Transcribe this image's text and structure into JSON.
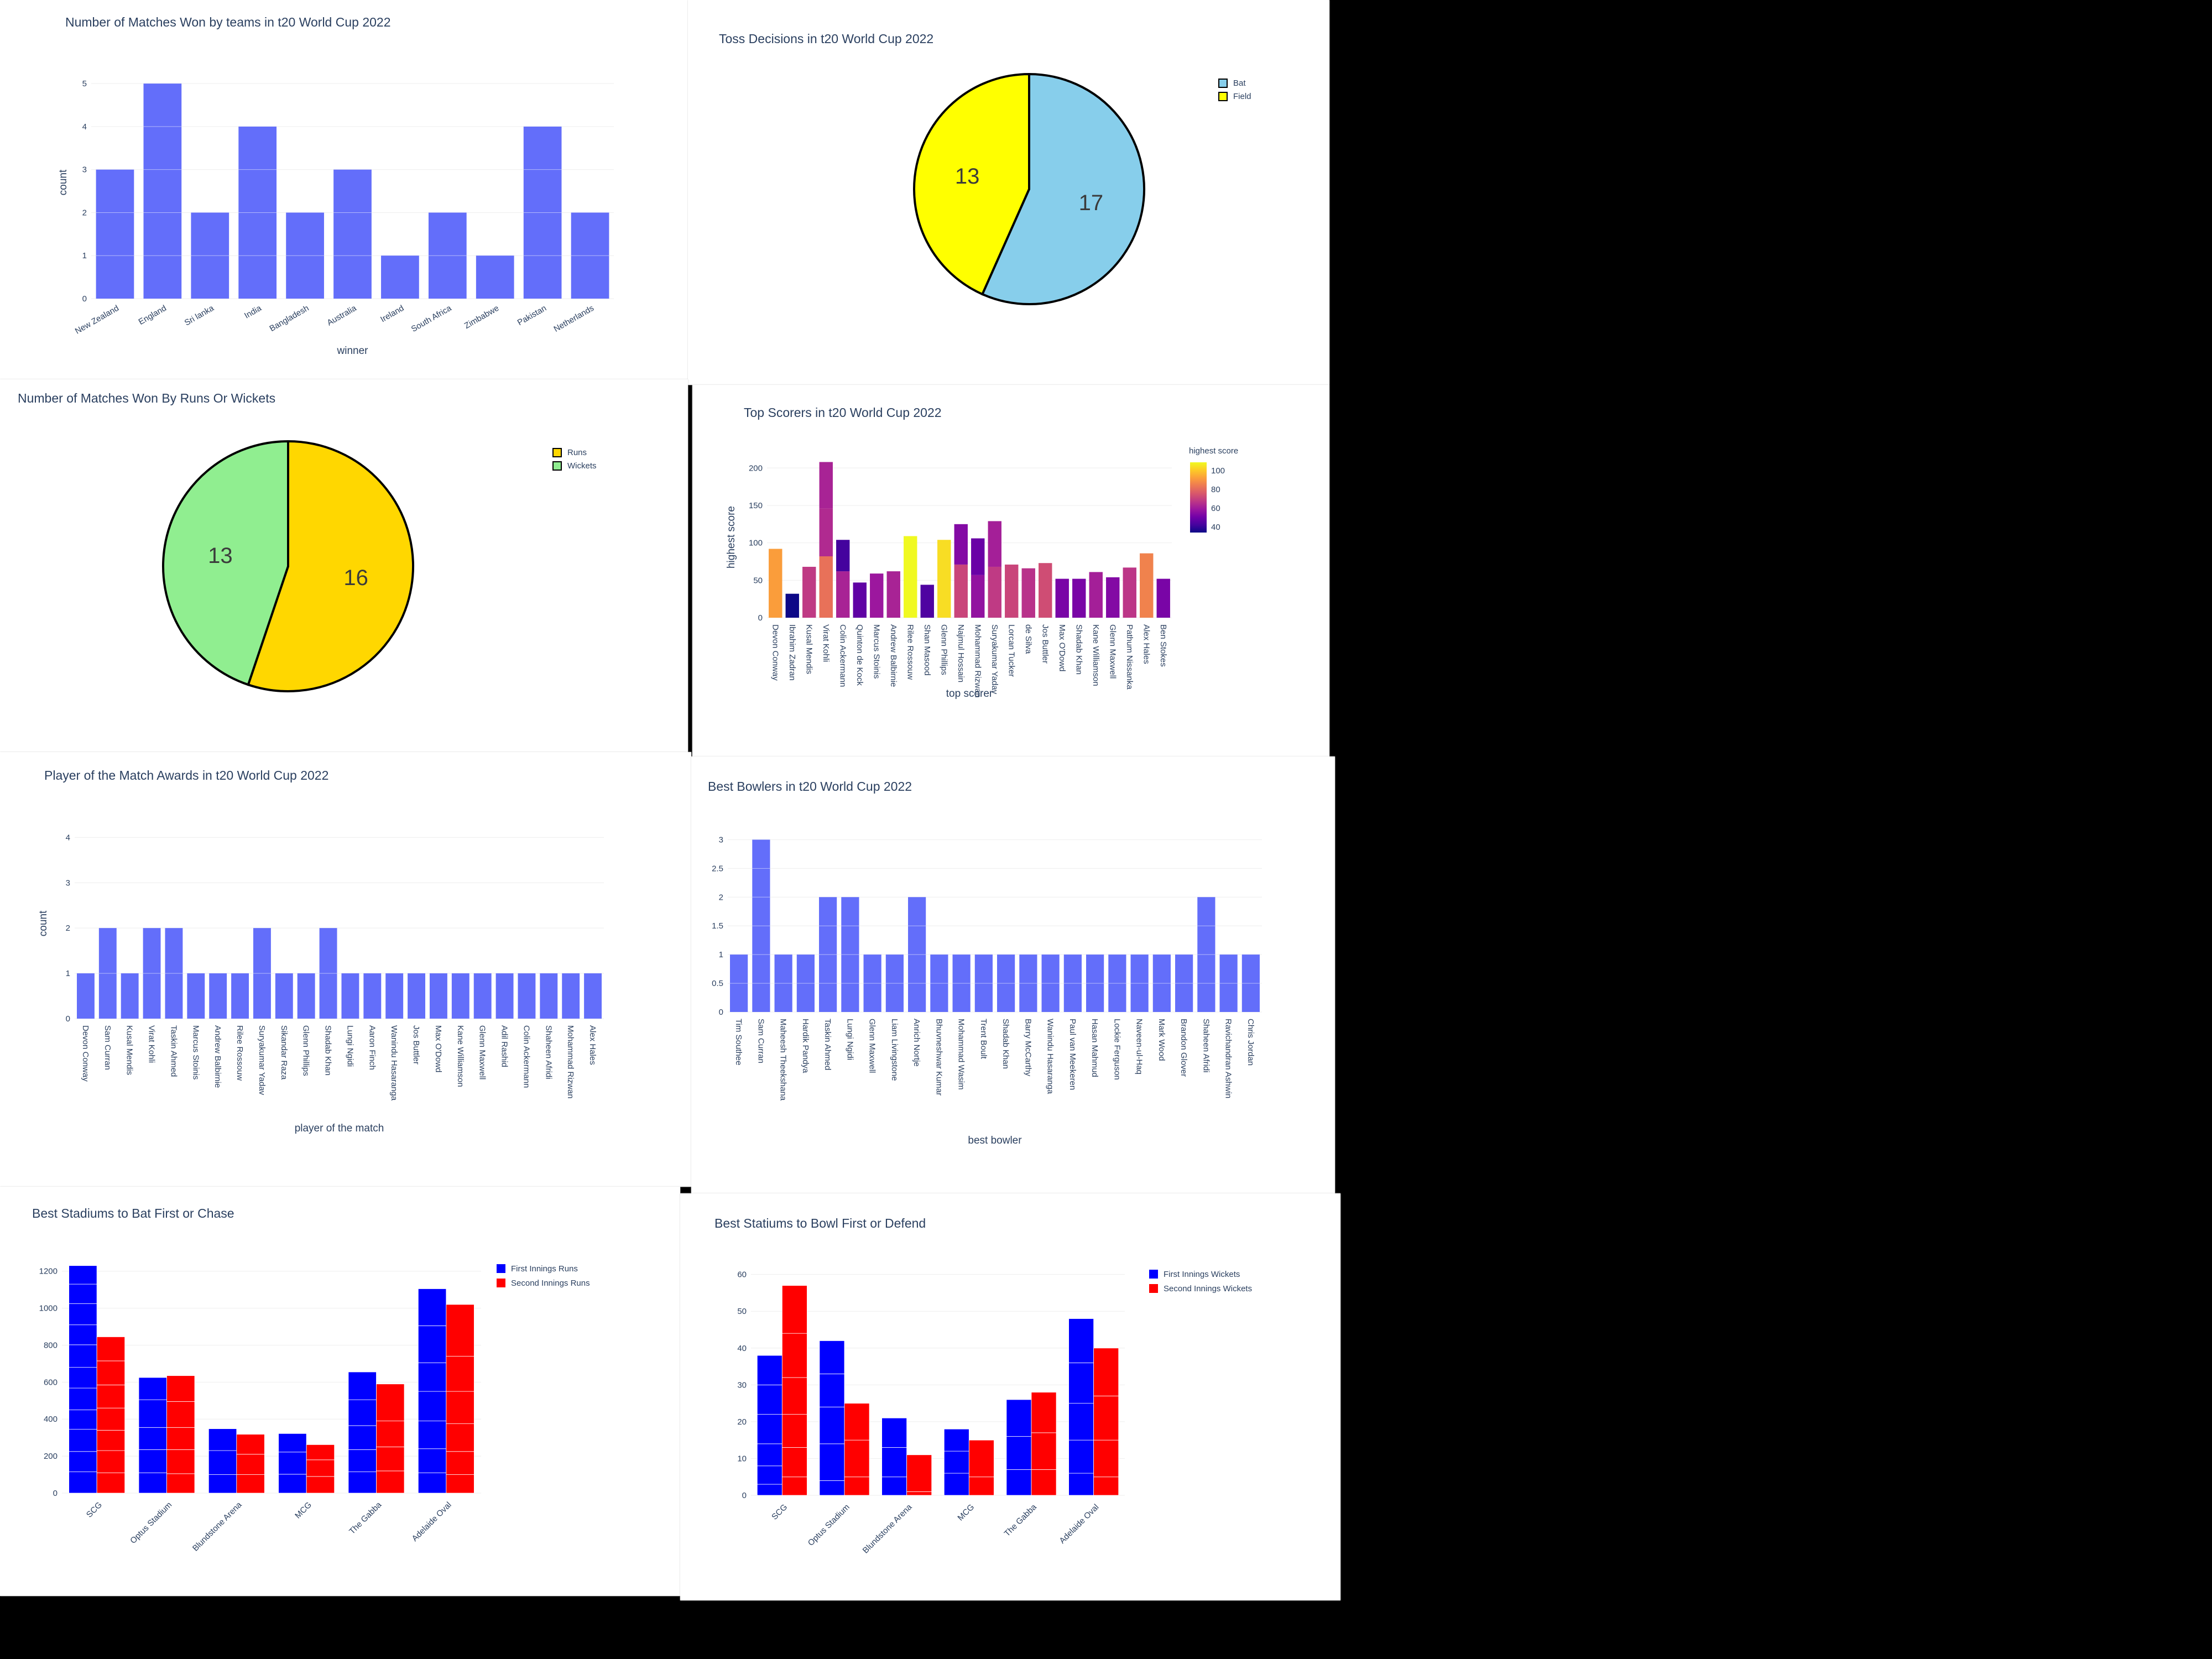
{
  "colors": {
    "plotly_blue": "#636efa",
    "bat": "#87ceeb",
    "field": "#ffff00",
    "runs": "#ffd700",
    "wickets": "#90ee90",
    "first": "#0000ff",
    "second": "#ff0000"
  },
  "chart_data": [
    {
      "id": "matches_won",
      "type": "bar",
      "title": "Number of Matches Won by teams in t20 World Cup 2022",
      "xlabel": "winner",
      "ylabel": "count",
      "ylim": [
        0,
        5.4
      ],
      "yticks": [
        0,
        1,
        2,
        3,
        4,
        5
      ],
      "categories": [
        "New Zealand",
        "England",
        "Sri lanka",
        "India",
        "Bangladesh",
        "Australia",
        "Ireland",
        "South Africa",
        "Zimbabwe",
        "Pakistan",
        "Netherlands"
      ],
      "values": [
        3,
        5,
        2,
        4,
        2,
        3,
        1,
        2,
        1,
        4,
        2
      ],
      "color": "#636efa"
    },
    {
      "id": "toss_decisions",
      "type": "pie",
      "title": "Toss Decisions in t20 World Cup 2022",
      "labels": [
        "Bat",
        "Field"
      ],
      "values": [
        17,
        13
      ],
      "colors": [
        "#87ceeb",
        "#ffff00"
      ]
    },
    {
      "id": "won_by",
      "type": "pie",
      "title": "Number of Matches Won By Runs Or Wickets",
      "labels": [
        "Runs",
        "Wickets"
      ],
      "values": [
        16,
        13
      ],
      "colors": [
        "#ffd700",
        "#90ee90"
      ]
    },
    {
      "id": "top_scorers",
      "type": "bar",
      "title": "Top Scorers in t20 World Cup 2022",
      "xlabel": "top scorer",
      "ylabel": "highest score",
      "ylim": [
        0,
        215
      ],
      "yticks": [
        0,
        50,
        100,
        150,
        200
      ],
      "colorbar_title": "highest score",
      "colorbar_ticks": [
        40,
        60,
        80,
        100
      ],
      "colorbar_range": [
        34,
        109
      ],
      "categories": [
        "Devon Conway",
        "Ibrahim Zadran",
        "Kusal Mendis",
        "Virat Kohli",
        "Colin Ackermann",
        "Quinton de Kock",
        "Marcus Stoinis",
        "Andrew Balbirnie",
        "Rilee Rossouw",
        "Shan Masood",
        "Glenn Phillips",
        "Najmul Hossain",
        "Mohammad Rizwan",
        "Suryakumar Yadav",
        "Lorcan Tucker",
        "de Silva",
        "Jos Buttler",
        "Max O'Dowd",
        "Shadab Khan",
        "Kane Williamson",
        "Glenn Maxwell",
        "Pathum Nissanka",
        "Alex Hales",
        "Ben Stokes"
      ],
      "segments": [
        [
          92
        ],
        [
          32
        ],
        [
          68
        ],
        [
          82,
          64,
          62
        ],
        [
          62,
          42
        ],
        [
          47
        ],
        [
          59
        ],
        [
          62
        ],
        [
          109
        ],
        [
          44
        ],
        [
          104
        ],
        [
          71,
          54
        ],
        [
          57,
          49
        ],
        [
          68,
          61
        ],
        [
          71
        ],
        [
          66
        ],
        [
          73
        ],
        [
          52
        ],
        [
          52
        ],
        [
          61
        ],
        [
          54
        ],
        [
          67
        ],
        [
          86
        ],
        [
          52
        ]
      ]
    },
    {
      "id": "player_of_match",
      "type": "bar",
      "title": "Player of the Match Awards in t20 World Cup 2022",
      "xlabel": "player of the match",
      "ylabel": "count",
      "ylim": [
        0,
        4.2
      ],
      "yticks": [
        0,
        1,
        2,
        3,
        4
      ],
      "categories": [
        "Devon Conway",
        "Sam Curran",
        "Kusal Mendis",
        "Virat Kohli",
        "Taskin Ahmed",
        "Marcus Stoinis",
        "Andrew Balbirnie",
        "Rilee Rossouw",
        "Suryakumar Yadav",
        "Sikandar Raza",
        "Glenn Phillips",
        "Shadab Khan",
        "Lungi Ngidi",
        "Aaron Finch",
        "Wanindu Hasaranga",
        "Jos Buttler",
        "Max O'Dowd",
        "Kane Williamson",
        "Glenn Maxwell",
        "Adil Rashid",
        "Colin Ackermann",
        "Shaheen Afridi",
        "Mohammad Rizwan",
        "Alex Hales"
      ],
      "values": [
        1,
        2,
        1,
        2,
        2,
        1,
        1,
        1,
        2,
        1,
        1,
        2,
        1,
        1,
        1,
        1,
        1,
        1,
        1,
        1,
        1,
        1,
        1,
        1
      ],
      "color": "#636efa"
    },
    {
      "id": "best_bowlers",
      "type": "bar",
      "title": "Best Bowlers in t20 World Cup 2022",
      "xlabel": "best bowler",
      "ylabel": "count",
      "ylim": [
        0,
        3.1
      ],
      "yticks": [
        0,
        0.5,
        1,
        1.5,
        2,
        2.5,
        3
      ],
      "ytick_labels": [
        "0",
        "0.5",
        "1",
        "1.5",
        "2",
        "2.5",
        "3"
      ],
      "categories": [
        "Tim Southee",
        "Sam Curran",
        "Maheesh Theekshana",
        "Hardik Pandya",
        "Taskin Ahmed",
        "Lungi Ngidi",
        "Glenn Maxwell",
        "Liam Livingstone",
        "Anrich Nortje",
        "Bhuvneshwar Kumar",
        "Mohammad Wasim",
        "Trent Boult",
        "Shadab Khan",
        "Barry McCarthy",
        "Wanindu Hasaranga",
        "Paul van Meekeren",
        "Hasan Mahmud",
        "Lockie Ferguson",
        "Naveen-ul-Haq",
        "Mark Wood",
        "Brandon Glover",
        "Shaheen Afridi",
        "Ravichandran Ashwin",
        "Chris Jordan"
      ],
      "values": [
        1,
        3,
        1,
        1,
        2,
        2,
        1,
        1,
        2,
        1,
        1,
        1,
        1,
        1,
        1,
        1,
        1,
        1,
        1,
        1,
        1,
        2,
        1,
        1
      ],
      "color": "#636efa"
    },
    {
      "id": "bat_first",
      "type": "bar",
      "title": "Best Stadiums to Bat First or Chase",
      "ylim": [
        0,
        1250
      ],
      "yticks": [
        0,
        200,
        400,
        600,
        800,
        1000,
        1200
      ],
      "categories": [
        "SCG",
        "Optus Stadium",
        "Blundstone Arena",
        "MCG",
        "The Gabba",
        "Adelaide Oval"
      ],
      "series": [
        {
          "name": "First Innings Runs",
          "color": "#0000ff",
          "values": [
            1230,
            625,
            348,
            322,
            655,
            1105
          ],
          "segments": [
            [
              115,
              110,
              120,
              105,
              118,
              112,
              122,
              108,
              115,
              105,
              100
            ],
            [
              110,
              125,
              120,
              150,
              120
            ],
            [
              100,
              130,
              118
            ],
            [
              102,
              120,
              100
            ],
            [
              115,
              120,
              130,
              140,
              150
            ],
            [
              110,
              130,
              150,
              160,
              155,
              200,
              200
            ]
          ]
        },
        {
          "name": "Second Innings Runs",
          "color": "#ff0000",
          "values": [
            845,
            635,
            318,
            262,
            590,
            1020
          ],
          "segments": [
            [
              110,
              120,
              110,
              120,
              125,
              130,
              130
            ],
            [
              105,
              130,
              120,
              140,
              140
            ],
            [
              100,
              110,
              108
            ],
            [
              90,
              90,
              82
            ],
            [
              120,
              130,
              140,
              200
            ],
            [
              100,
              125,
              150,
              175,
              190,
              280
            ]
          ]
        }
      ]
    },
    {
      "id": "bowl_first",
      "type": "bar",
      "title": "Best Statiums to Bowl First or Defend",
      "ylim": [
        0,
        61
      ],
      "yticks": [
        0,
        10,
        20,
        30,
        40,
        50,
        60
      ],
      "categories": [
        "SCG",
        "Optus Stadium",
        "Blundstone Arena",
        "MCG",
        "The Gabba",
        "Adelaide Oval"
      ],
      "series": [
        {
          "name": "First Innings Wickets",
          "color": "#0000ff",
          "values": [
            38,
            42,
            21,
            18,
            26,
            48
          ],
          "segments": [
            [
              3,
              5,
              6,
              8,
              8,
              8
            ],
            [
              4,
              10,
              10,
              9,
              9
            ],
            [
              5,
              8,
              8
            ],
            [
              6,
              6,
              6
            ],
            [
              7,
              9,
              10
            ],
            [
              6,
              9,
              10,
              11,
              12
            ]
          ]
        },
        {
          "name": "Second Innings Wickets",
          "color": "#ff0000",
          "values": [
            57,
            25,
            11,
            15,
            28,
            40
          ],
          "segments": [
            [
              5,
              8,
              9,
              10,
              12,
              13
            ],
            [
              5,
              10,
              10
            ],
            [
              1,
              10
            ],
            [
              5,
              10
            ],
            [
              7,
              10,
              11
            ],
            [
              5,
              10,
              12,
              13
            ]
          ]
        }
      ]
    }
  ]
}
